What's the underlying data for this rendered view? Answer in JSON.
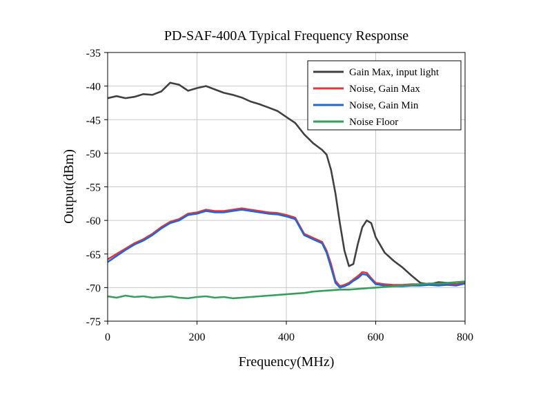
{
  "chart_data": {
    "type": "line",
    "title": "PD-SAF-400A Typical Frequency Response",
    "xlabel": "Frequency(MHz)",
    "ylabel": "Output(dBm)",
    "xlim": [
      0,
      800
    ],
    "ylim": [
      -75,
      -35
    ],
    "xticks": [
      0,
      200,
      400,
      600,
      800
    ],
    "yticks": [
      -75,
      -70,
      -65,
      -60,
      -55,
      -50,
      -45,
      -40,
      -35
    ],
    "grid": true,
    "legend_position": "top-right",
    "series": [
      {
        "name": "Gain Max, input light",
        "color": "#404040",
        "x": [
          0,
          20,
          40,
          60,
          80,
          100,
          120,
          140,
          160,
          180,
          200,
          220,
          240,
          260,
          280,
          300,
          320,
          340,
          360,
          380,
          400,
          420,
          440,
          460,
          480,
          490,
          500,
          510,
          520,
          530,
          540,
          550,
          560,
          570,
          580,
          590,
          600,
          620,
          640,
          660,
          680,
          700,
          720,
          740,
          760,
          780,
          800
        ],
        "y": [
          -41.8,
          -41.5,
          -41.8,
          -41.6,
          -41.2,
          -41.3,
          -40.8,
          -39.5,
          -39.8,
          -40.7,
          -40.3,
          -40.0,
          -40.5,
          -41.0,
          -41.3,
          -41.7,
          -42.3,
          -42.7,
          -43.2,
          -43.7,
          -44.6,
          -45.5,
          -47.2,
          -48.5,
          -49.5,
          -50.2,
          -52.5,
          -56.0,
          -60.5,
          -64.5,
          -66.8,
          -66.5,
          -63.5,
          -61.0,
          -60.0,
          -60.4,
          -62.5,
          -64.8,
          -66.0,
          -67.0,
          -68.2,
          -69.3,
          -69.5,
          -69.2,
          -69.3,
          -69.5,
          -69.4
        ]
      },
      {
        "name": "Noise, Gain Max",
        "color": "#e8333a",
        "x": [
          0,
          20,
          40,
          60,
          80,
          100,
          120,
          140,
          160,
          180,
          200,
          220,
          240,
          260,
          280,
          300,
          320,
          340,
          360,
          380,
          400,
          420,
          440,
          460,
          480,
          490,
          500,
          510,
          520,
          530,
          540,
          550,
          560,
          570,
          580,
          590,
          600,
          620,
          640,
          660,
          680,
          700,
          720,
          740,
          760,
          780,
          800
        ],
        "y": [
          -65.8,
          -65.0,
          -64.2,
          -63.4,
          -62.8,
          -62.0,
          -61.0,
          -60.2,
          -59.8,
          -59.0,
          -58.8,
          -58.4,
          -58.6,
          -58.6,
          -58.4,
          -58.2,
          -58.4,
          -58.6,
          -58.8,
          -58.9,
          -59.2,
          -59.6,
          -62.0,
          -62.6,
          -63.2,
          -64.5,
          -66.5,
          -69.0,
          -69.8,
          -69.6,
          -69.3,
          -68.8,
          -68.3,
          -67.7,
          -67.8,
          -68.6,
          -69.3,
          -69.5,
          -69.6,
          -69.6,
          -69.5,
          -69.5,
          -69.4,
          -69.5,
          -69.4,
          -69.5,
          -69.2
        ]
      },
      {
        "name": "Noise, Gain Min",
        "color": "#1f66d6",
        "x": [
          0,
          20,
          40,
          60,
          80,
          100,
          120,
          140,
          160,
          180,
          200,
          220,
          240,
          260,
          280,
          300,
          320,
          340,
          360,
          380,
          400,
          420,
          440,
          460,
          480,
          490,
          500,
          510,
          520,
          530,
          540,
          550,
          560,
          570,
          580,
          590,
          600,
          620,
          640,
          660,
          680,
          700,
          720,
          740,
          760,
          780,
          800
        ],
        "y": [
          -66.2,
          -65.3,
          -64.4,
          -63.6,
          -63.0,
          -62.2,
          -61.2,
          -60.4,
          -60.0,
          -59.2,
          -59.0,
          -58.6,
          -58.8,
          -58.8,
          -58.6,
          -58.4,
          -58.6,
          -58.8,
          -59.0,
          -59.1,
          -59.4,
          -59.8,
          -62.2,
          -62.8,
          -63.4,
          -64.8,
          -67.0,
          -69.3,
          -70.0,
          -69.8,
          -69.5,
          -69.0,
          -68.6,
          -68.0,
          -68.1,
          -68.8,
          -69.5,
          -69.7,
          -69.8,
          -69.8,
          -69.7,
          -69.7,
          -69.6,
          -69.7,
          -69.6,
          -69.7,
          -69.4
        ]
      },
      {
        "name": "Noise Floor",
        "color": "#33a05a",
        "x": [
          0,
          20,
          40,
          60,
          80,
          100,
          120,
          140,
          160,
          180,
          200,
          220,
          240,
          260,
          280,
          300,
          320,
          340,
          360,
          380,
          400,
          420,
          440,
          460,
          480,
          500,
          520,
          540,
          560,
          580,
          600,
          620,
          640,
          660,
          680,
          700,
          720,
          740,
          760,
          780,
          800
        ],
        "y": [
          -71.3,
          -71.5,
          -71.2,
          -71.4,
          -71.3,
          -71.5,
          -71.4,
          -71.3,
          -71.5,
          -71.6,
          -71.4,
          -71.3,
          -71.5,
          -71.4,
          -71.6,
          -71.5,
          -71.4,
          -71.3,
          -71.2,
          -71.1,
          -71.0,
          -70.9,
          -70.8,
          -70.6,
          -70.5,
          -70.4,
          -70.3,
          -70.3,
          -70.2,
          -70.1,
          -70.0,
          -69.9,
          -69.8,
          -69.7,
          -69.6,
          -69.5,
          -69.4,
          -69.4,
          -69.3,
          -69.2,
          -69.1
        ]
      }
    ]
  }
}
